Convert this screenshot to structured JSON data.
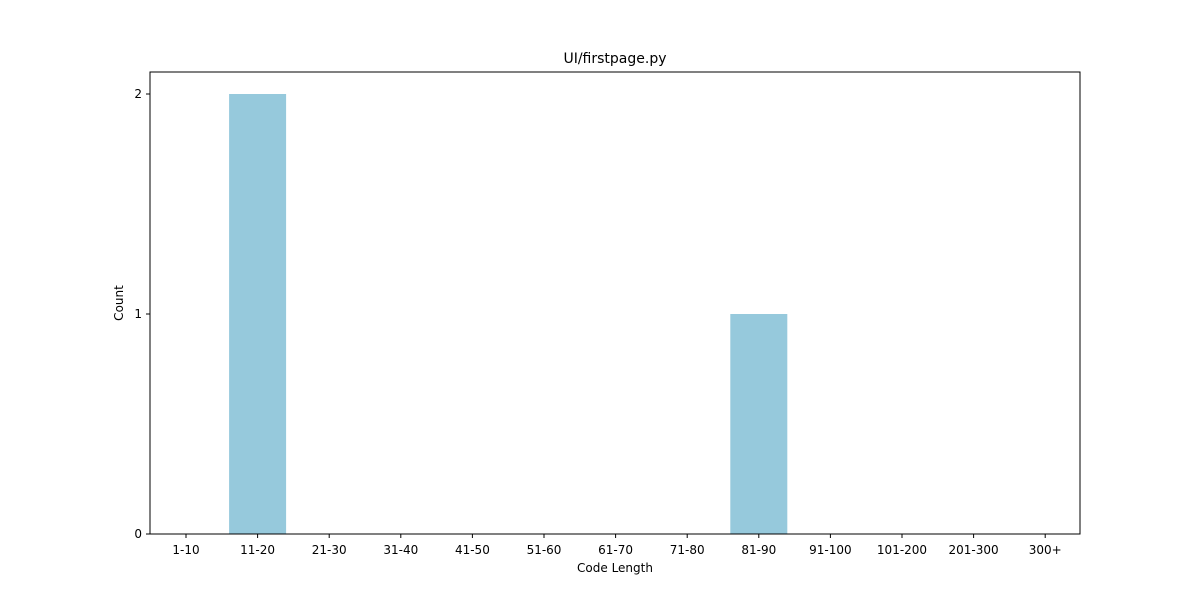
{
  "chart_data": {
    "type": "bar",
    "title": "UI/firstpage.py",
    "xlabel": "Code Length",
    "ylabel": "Count",
    "categories": [
      "1-10",
      "11-20",
      "21-30",
      "31-40",
      "41-50",
      "51-60",
      "61-70",
      "71-80",
      "81-90",
      "91-100",
      "101-200",
      "201-300",
      "300+"
    ],
    "values": [
      0,
      2,
      0,
      0,
      0,
      0,
      0,
      0,
      1,
      0,
      0,
      0,
      0
    ],
    "yticks": [
      0,
      1,
      2
    ],
    "ylim": [
      0,
      2.1
    ],
    "grid": false,
    "bar_color": "#96c9dc"
  }
}
